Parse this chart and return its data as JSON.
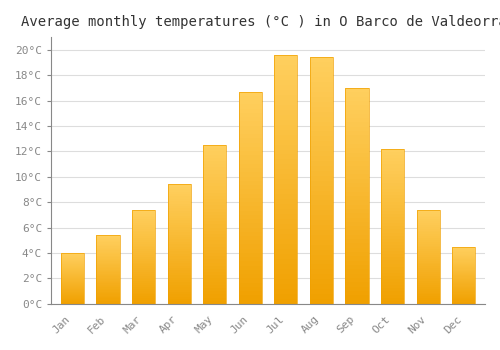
{
  "title": "Average monthly temperatures (°C ) in O Barco de Valdeorras",
  "months": [
    "Jan",
    "Feb",
    "Mar",
    "Apr",
    "May",
    "Jun",
    "Jul",
    "Aug",
    "Sep",
    "Oct",
    "Nov",
    "Dec"
  ],
  "temperatures": [
    4.0,
    5.4,
    7.4,
    9.4,
    12.5,
    16.7,
    19.6,
    19.4,
    17.0,
    12.2,
    7.4,
    4.5
  ],
  "bar_color_light": "#FFD060",
  "bar_color_dark": "#F0A000",
  "background_color": "#FFFFFF",
  "grid_color": "#DDDDDD",
  "ylim": [
    0,
    21
  ],
  "ytick_step": 2,
  "title_fontsize": 10,
  "tick_fontsize": 8,
  "font_family": "monospace"
}
